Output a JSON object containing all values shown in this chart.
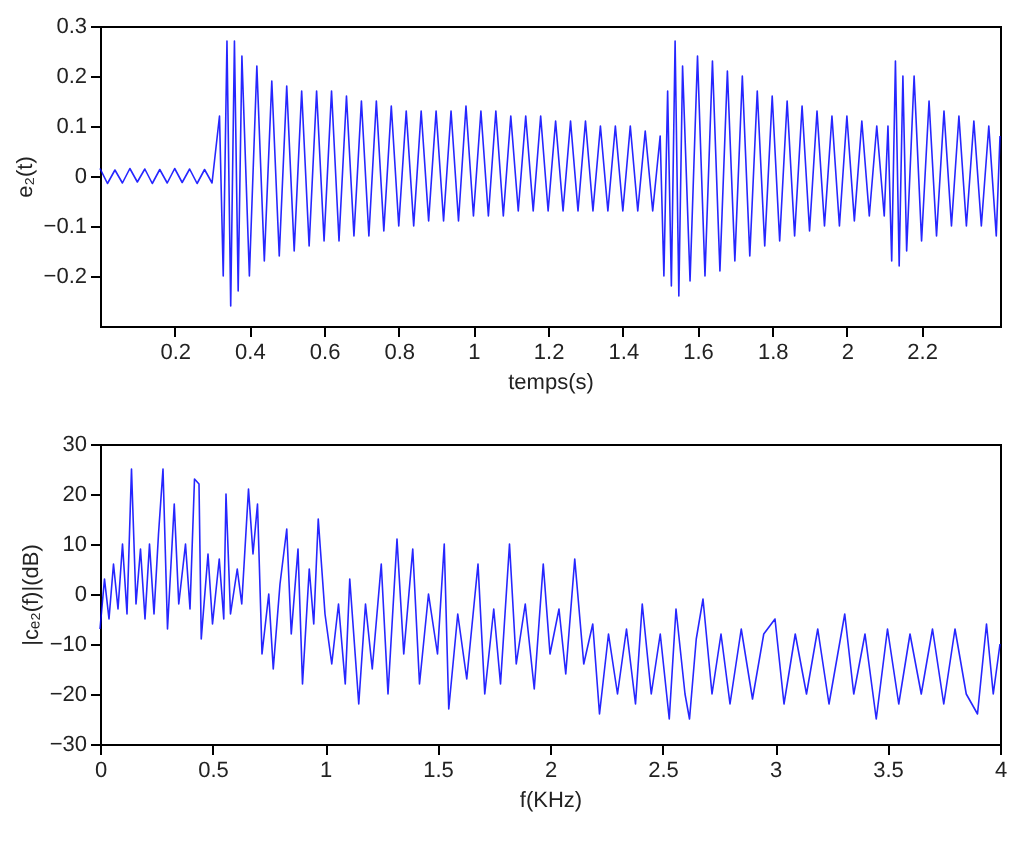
{
  "chart_data": [
    {
      "type": "line",
      "xlabel": "temps(s)",
      "ylabel": "e₂(t)",
      "xlim": [
        0,
        2.41
      ],
      "ylim": [
        -0.3,
        0.3
      ],
      "xticks": [
        0.2,
        0.4,
        0.6,
        0.8,
        1,
        1.2,
        1.4,
        1.6,
        1.8,
        2,
        2.2
      ],
      "yticks": [
        -0.2,
        -0.1,
        0,
        0.1,
        0.2,
        0.3
      ],
      "grid": false,
      "series": [
        {
          "color": "#0000ff",
          "x": [
            0.0,
            0.02,
            0.04,
            0.06,
            0.08,
            0.1,
            0.12,
            0.14,
            0.16,
            0.18,
            0.2,
            0.22,
            0.24,
            0.26,
            0.28,
            0.3,
            0.32,
            0.33,
            0.34,
            0.35,
            0.36,
            0.37,
            0.38,
            0.4,
            0.42,
            0.44,
            0.46,
            0.48,
            0.5,
            0.52,
            0.54,
            0.56,
            0.58,
            0.6,
            0.62,
            0.64,
            0.66,
            0.68,
            0.7,
            0.72,
            0.74,
            0.76,
            0.78,
            0.8,
            0.82,
            0.84,
            0.86,
            0.88,
            0.9,
            0.92,
            0.94,
            0.96,
            0.98,
            1.0,
            1.02,
            1.04,
            1.06,
            1.08,
            1.1,
            1.12,
            1.14,
            1.16,
            1.18,
            1.2,
            1.22,
            1.24,
            1.26,
            1.28,
            1.3,
            1.32,
            1.34,
            1.36,
            1.38,
            1.4,
            1.42,
            1.44,
            1.46,
            1.48,
            1.5,
            1.51,
            1.52,
            1.53,
            1.54,
            1.55,
            1.56,
            1.58,
            1.6,
            1.62,
            1.64,
            1.66,
            1.68,
            1.7,
            1.72,
            1.74,
            1.76,
            1.78,
            1.8,
            1.82,
            1.84,
            1.86,
            1.88,
            1.9,
            1.92,
            1.94,
            1.96,
            1.98,
            2.0,
            2.02,
            2.04,
            2.06,
            2.08,
            2.1,
            2.11,
            2.12,
            2.13,
            2.14,
            2.15,
            2.16,
            2.18,
            2.2,
            2.22,
            2.24,
            2.26,
            2.28,
            2.3,
            2.32,
            2.34,
            2.36,
            2.38,
            2.4,
            2.41
          ],
          "values": [
            0.015,
            -0.015,
            0.012,
            -0.014,
            0.015,
            -0.012,
            0.014,
            -0.015,
            0.013,
            -0.014,
            0.015,
            -0.013,
            0.014,
            -0.015,
            0.013,
            -0.014,
            0.12,
            -0.2,
            0.27,
            -0.26,
            0.27,
            -0.23,
            0.24,
            -0.2,
            0.22,
            -0.17,
            0.19,
            -0.16,
            0.18,
            -0.15,
            0.17,
            -0.14,
            0.17,
            -0.13,
            0.17,
            -0.13,
            0.16,
            -0.12,
            0.15,
            -0.12,
            0.15,
            -0.11,
            0.14,
            -0.1,
            0.13,
            -0.1,
            0.13,
            -0.09,
            0.13,
            -0.09,
            0.13,
            -0.09,
            0.14,
            -0.08,
            0.13,
            -0.08,
            0.13,
            -0.08,
            0.12,
            -0.07,
            0.12,
            -0.07,
            0.12,
            -0.07,
            0.11,
            -0.07,
            0.11,
            -0.07,
            0.11,
            -0.07,
            0.1,
            -0.07,
            0.1,
            -0.07,
            0.1,
            -0.07,
            0.09,
            -0.07,
            0.08,
            -0.2,
            0.17,
            -0.22,
            0.27,
            -0.24,
            0.22,
            -0.21,
            0.24,
            -0.2,
            0.23,
            -0.19,
            0.21,
            -0.17,
            0.2,
            -0.16,
            0.17,
            -0.14,
            0.16,
            -0.13,
            0.15,
            -0.12,
            0.14,
            -0.11,
            0.13,
            -0.1,
            0.12,
            -0.1,
            0.12,
            -0.09,
            0.11,
            -0.08,
            0.1,
            -0.08,
            0.1,
            -0.17,
            0.23,
            -0.18,
            0.2,
            -0.15,
            0.2,
            -0.13,
            0.15,
            -0.12,
            0.13,
            -0.1,
            0.12,
            -0.1,
            0.11,
            -0.1,
            0.1,
            -0.12,
            0.08
          ]
        }
      ]
    },
    {
      "type": "line",
      "xlabel": "f(KHz)",
      "ylabel": "|cₑ₂(f)|(dB)",
      "xlim": [
        0,
        4
      ],
      "ylim": [
        -30,
        30
      ],
      "xticks": [
        0,
        0.5,
        1,
        1.5,
        2,
        2.5,
        3,
        3.5,
        4
      ],
      "yticks": [
        -30,
        -20,
        -10,
        0,
        10,
        20,
        30
      ],
      "grid": false,
      "series": [
        {
          "color": "#0000ff",
          "x": [
            0,
            0.02,
            0.04,
            0.06,
            0.08,
            0.1,
            0.12,
            0.14,
            0.16,
            0.18,
            0.2,
            0.22,
            0.24,
            0.26,
            0.28,
            0.3,
            0.33,
            0.35,
            0.38,
            0.4,
            0.42,
            0.44,
            0.45,
            0.48,
            0.5,
            0.53,
            0.55,
            0.56,
            0.58,
            0.61,
            0.63,
            0.66,
            0.68,
            0.7,
            0.72,
            0.75,
            0.77,
            0.8,
            0.83,
            0.85,
            0.88,
            0.9,
            0.93,
            0.95,
            0.97,
            1.0,
            1.03,
            1.06,
            1.09,
            1.11,
            1.15,
            1.18,
            1.21,
            1.25,
            1.28,
            1.32,
            1.35,
            1.39,
            1.42,
            1.46,
            1.5,
            1.53,
            1.55,
            1.59,
            1.63,
            1.68,
            1.71,
            1.75,
            1.78,
            1.82,
            1.85,
            1.89,
            1.93,
            1.97,
            2.0,
            2.04,
            2.07,
            2.11,
            2.15,
            2.19,
            2.22,
            2.26,
            2.3,
            2.34,
            2.38,
            2.41,
            2.45,
            2.49,
            2.53,
            2.56,
            2.6,
            2.62,
            2.65,
            2.68,
            2.72,
            2.76,
            2.8,
            2.85,
            2.9,
            2.95,
            3.0,
            3.04,
            3.09,
            3.14,
            3.19,
            3.24,
            3.31,
            3.35,
            3.4,
            3.45,
            3.5,
            3.55,
            3.6,
            3.65,
            3.7,
            3.75,
            3.8,
            3.85,
            3.9,
            3.94,
            3.97,
            4.0
          ],
          "values": [
            -7,
            3,
            -5,
            6,
            -3,
            10,
            -4,
            25,
            -2,
            9,
            -5,
            10,
            -4,
            12,
            25,
            -7,
            18,
            -2,
            10,
            -3,
            23,
            22,
            -9,
            8,
            -6,
            7,
            -5,
            20,
            -4,
            5,
            -2,
            21,
            8,
            18,
            -12,
            0,
            -15,
            2,
            13,
            -8,
            9,
            -18,
            5,
            -6,
            15,
            -4,
            -14,
            -2,
            -18,
            3,
            -22,
            -2,
            -15,
            6,
            -20,
            11,
            -12,
            9,
            -18,
            0,
            -12,
            10,
            -23,
            -4,
            -17,
            6,
            -20,
            -3,
            -18,
            10,
            -14,
            -2,
            -19,
            6,
            -12,
            -3,
            -16,
            7,
            -14,
            -6,
            -24,
            -8,
            -20,
            -7,
            -22,
            -2,
            -20,
            -8,
            -25,
            -3,
            -20,
            -25,
            -9,
            -1,
            -20,
            -8,
            -22,
            -7,
            -21,
            -8,
            -5,
            -22,
            -8,
            -20,
            -7,
            -22,
            -4,
            -20,
            -8,
            -25,
            -7,
            -22,
            -8,
            -20,
            -7,
            -22,
            -7,
            -20,
            -24,
            -6,
            -20,
            -10
          ]
        }
      ]
    }
  ]
}
